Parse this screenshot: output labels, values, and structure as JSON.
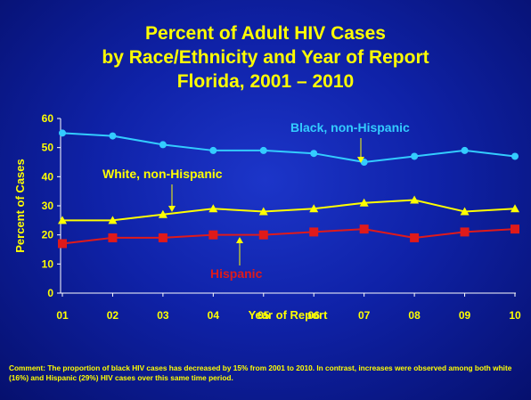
{
  "title": {
    "line1": "Percent of Adult HIV Cases",
    "line2": "by Race/Ethnicity and Year of Report",
    "line3": "Florida, 2001 – 2010"
  },
  "comment": "Comment: The proportion of black HIV cases has decreased by 15% from 2001 to 2010.  In contrast, increases were observed among both white (16%) and Hispanic (29%) HIV cases over this same time period.",
  "chart_data": {
    "type": "line",
    "xlabel": "Year of Report",
    "ylabel": "Percent of Cases",
    "ylim": [
      0,
      60
    ],
    "yticks": [
      "0",
      "10",
      "20",
      "30",
      "40",
      "50",
      "60"
    ],
    "categories": [
      "01",
      "02",
      "03",
      "04",
      "05",
      "06",
      "07",
      "08",
      "09",
      "10"
    ],
    "grid": false,
    "series": [
      {
        "name": "Black, non-Hispanic",
        "color": "#33ccff",
        "marker": "circle",
        "values": [
          55,
          54,
          51,
          49,
          49,
          48,
          45,
          47,
          49,
          47
        ]
      },
      {
        "name": "White, non-Hispanic",
        "color": "#ffff00",
        "marker": "triangle",
        "values": [
          25,
          25,
          27,
          29,
          28,
          29,
          31,
          32,
          28,
          29
        ]
      },
      {
        "name": "Hispanic",
        "color": "#e01a1a",
        "marker": "square",
        "values": [
          17,
          19,
          19,
          20,
          20,
          21,
          22,
          19,
          21,
          22
        ]
      }
    ]
  }
}
